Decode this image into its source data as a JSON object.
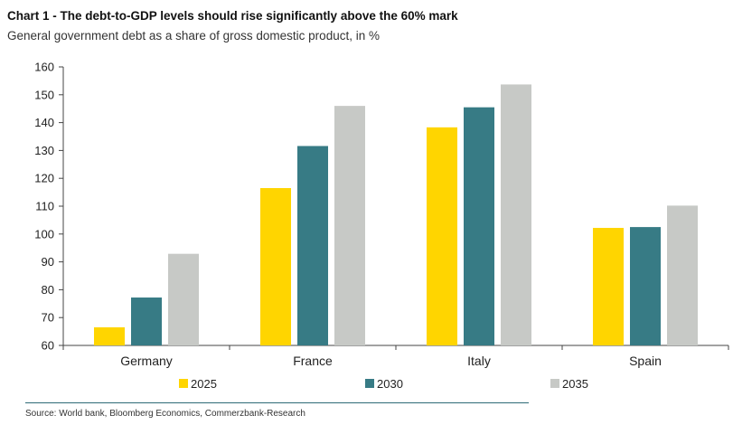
{
  "chart_data": {
    "type": "bar",
    "title": "Chart 1 - The debt-to-GDP levels should rise significantly above the 60% mark",
    "subtitle": "General government debt as a share of gross domestic product, in %",
    "categories": [
      "Germany",
      "France",
      "Italy",
      "Spain"
    ],
    "series": [
      {
        "name": "2025",
        "color": "#ffd500",
        "values": [
          66.5,
          116.5,
          138.3,
          102.2
        ]
      },
      {
        "name": "2030",
        "color": "#377b85",
        "values": [
          77.2,
          131.6,
          145.5,
          102.5
        ]
      },
      {
        "name": "2035",
        "color": "#c7c9c6",
        "values": [
          92.9,
          146.0,
          153.7,
          110.2
        ]
      }
    ],
    "ylim": [
      60,
      160
    ],
    "yticks": [
      60,
      70,
      80,
      90,
      100,
      110,
      120,
      130,
      140,
      150,
      160
    ],
    "xlabel": "",
    "ylabel": "",
    "grid": false,
    "legend_position": "bottom"
  },
  "source": "Source: World bank, Bloomberg Economics, Commerzbank-Research"
}
